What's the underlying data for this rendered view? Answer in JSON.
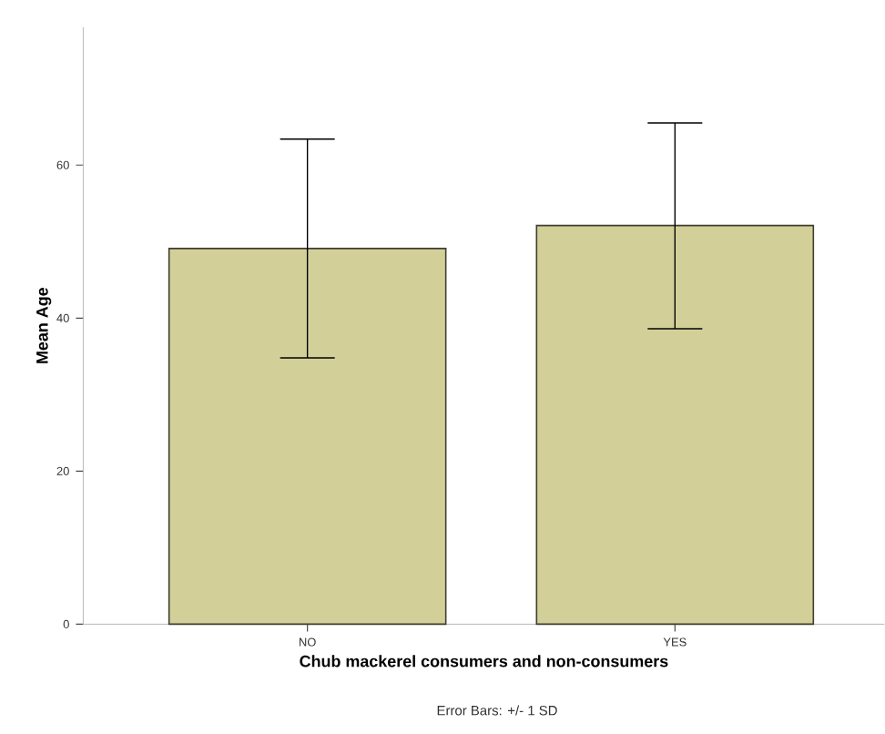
{
  "chart_data": {
    "type": "bar",
    "xlabel": "Chub mackerel consumers and non-consumers",
    "ylabel": "Mean Age",
    "categories": [
      "NO",
      "YES"
    ],
    "values": [
      49.1,
      52.1
    ],
    "errors": [
      [
        34.8,
        63.4
      ],
      [
        38.6,
        65.5
      ]
    ],
    "color": "#d3cf99",
    "ylim": [
      0,
      78
    ],
    "yticks": [
      0,
      20,
      40,
      60
    ],
    "grid": false,
    "annotations": [
      "Error Bars: +/- 1 SD"
    ]
  }
}
